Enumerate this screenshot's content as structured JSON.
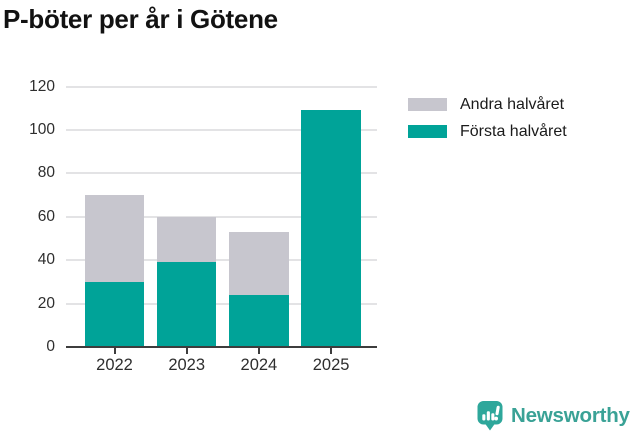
{
  "title": "P-böter per år i Götene",
  "chart_data": {
    "type": "bar",
    "stacked": true,
    "title": "P-böter per år i Götene",
    "xlabel": "",
    "ylabel": "",
    "categories": [
      "2022",
      "2023",
      "2024",
      "2025"
    ],
    "series": [
      {
        "name": "Första halvåret",
        "color": "#00a398",
        "values": [
          30,
          39,
          24,
          109
        ]
      },
      {
        "name": "Andra halvåret",
        "color": "#c7c6ce",
        "values": [
          40,
          21,
          29,
          0
        ]
      }
    ],
    "totals": [
      70,
      60,
      53,
      109
    ],
    "ylim": [
      0,
      120
    ],
    "yticks": [
      0,
      20,
      40,
      60,
      80,
      100,
      120
    ],
    "grid": true,
    "legend_position": "top-right"
  },
  "legend": {
    "items": [
      {
        "label": "Andra halvåret",
        "color": "#c7c6ce"
      },
      {
        "label": "Första halvåret",
        "color": "#00a398"
      }
    ]
  },
  "colors": {
    "first_half": "#00a398",
    "second_half": "#c7c6ce",
    "gridline": "#e3e3e5",
    "axis": "#3d3d3d",
    "brand_text": "#3aa296",
    "brand_logo": "#2ea79b"
  },
  "footer": {
    "brand": "Newsworthy",
    "logo_icon": "bar-chart-speech-bubble-icon"
  }
}
